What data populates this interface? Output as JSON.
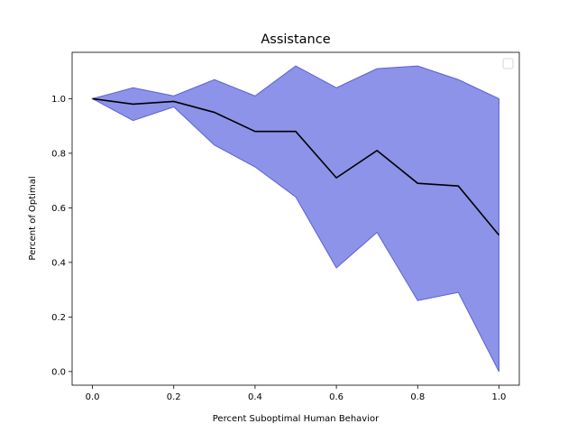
{
  "chart_data": {
    "type": "area",
    "title": "Assistance",
    "xlabel": "Percent Suboptimal Human Behavior",
    "ylabel": "Percent of Optimal",
    "xlim": [
      -0.05,
      1.05
    ],
    "ylim": [
      -0.05,
      1.17
    ],
    "x": [
      0.0,
      0.1,
      0.2,
      0.3,
      0.4,
      0.5,
      0.6,
      0.7,
      0.8,
      0.9,
      1.0
    ],
    "series": [
      {
        "values": [
          1.0,
          0.98,
          0.99,
          0.95,
          0.88,
          0.88,
          0.71,
          0.81,
          0.69,
          0.68,
          0.5
        ],
        "color": "#000000"
      }
    ],
    "band": {
      "upper": [
        1.0,
        1.04,
        1.01,
        1.07,
        1.01,
        1.12,
        1.04,
        1.11,
        1.12,
        1.07,
        1.0
      ],
      "lower": [
        1.0,
        0.92,
        0.97,
        0.83,
        0.75,
        0.64,
        0.38,
        0.51,
        0.26,
        0.29,
        0.0
      ],
      "color": "#8c93e8",
      "edge_color": "#5a61d6"
    },
    "x_ticks": [
      "0.0",
      "0.2",
      "0.4",
      "0.6",
      "0.8",
      "1.0"
    ],
    "y_ticks": [
      "0.0",
      "0.2",
      "0.4",
      "0.6",
      "0.8",
      "1.0"
    ],
    "grid": false,
    "legend_position": "top-right",
    "legend_entries": []
  }
}
